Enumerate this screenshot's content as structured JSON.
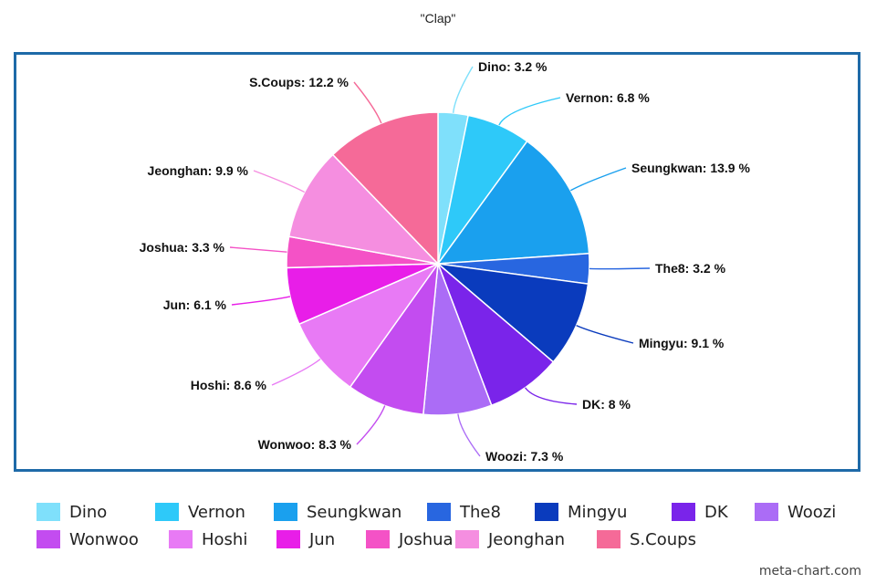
{
  "chart_data": {
    "type": "pie",
    "title": "\"Clap\"",
    "categories": [
      "Dino",
      "Vernon",
      "Seungkwan",
      "The8",
      "Mingyu",
      "DK",
      "Woozi",
      "Wonwoo",
      "Hoshi",
      "Jun",
      "Joshua",
      "Jeonghan",
      "S.Coups"
    ],
    "values": [
      3.2,
      6.8,
      13.9,
      3.2,
      9.1,
      8,
      7.3,
      8.3,
      8.6,
      6.1,
      3.3,
      9.9,
      12.2
    ],
    "labels": [
      "Dino: 3.2 %",
      "Vernon: 6.8 %",
      "Seungkwan: 13.9 %",
      "The8: 3.2 %",
      "Mingyu: 9.1 %",
      "DK: 8 %",
      "Woozi: 7.3 %",
      "Wonwoo: 8.3 %",
      "Hoshi: 8.6 %",
      "Jun: 6.1 %",
      "Joshua: 3.3 %",
      "Jeonghan: 9.9 %",
      "S.Coups: 12.2 %"
    ],
    "colors": [
      "#7fe0fb",
      "#2ec9f9",
      "#1aa0ee",
      "#2866e0",
      "#0a3bbd",
      "#7a24ea",
      "#ab6cf6",
      "#c34cf0",
      "#e87af5",
      "#e81ee8",
      "#f452c6",
      "#f58ee0",
      "#f56a98"
    ],
    "start_angle_deg": 0,
    "direction": "clockwise",
    "legend_position": "bottom"
  },
  "legend_rows": [
    [
      "Dino",
      "Vernon",
      "Seungkwan",
      "The8",
      "Mingyu",
      "DK",
      "Woozi"
    ],
    [
      "Wonwoo",
      "Hoshi",
      "Jun",
      "Joshua",
      "Jeonghan",
      "S.Coups"
    ]
  ],
  "watermark": "meta-chart.com"
}
